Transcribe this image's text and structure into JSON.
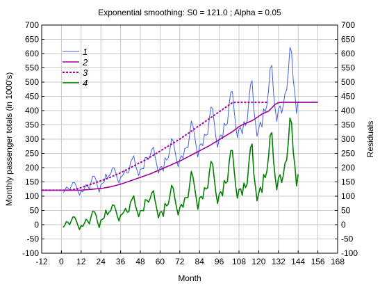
{
  "chart_data": {
    "type": "line",
    "title": "Exponential smoothing: S0 = 121.0 ; Alpha = 0.05",
    "xlabel": "Month",
    "ylabel": "Monthly passenger totals (in 1000's)",
    "y2label": "Residuals",
    "xlim": [
      -12,
      168
    ],
    "ylim": [
      -100,
      700
    ],
    "xticks": [
      -12,
      0,
      12,
      24,
      36,
      48,
      60,
      72,
      84,
      96,
      108,
      120,
      132,
      144,
      156,
      168
    ],
    "yticks": [
      -100,
      -50,
      0,
      50,
      100,
      150,
      200,
      250,
      300,
      350,
      400,
      450,
      500,
      550,
      600,
      650,
      700
    ],
    "grid": true,
    "legend_position": "top-left",
    "series": [
      {
        "name": "1",
        "color": "#4060e0",
        "style": "solid",
        "x_start": 1,
        "values": [
          112,
          118,
          132,
          129,
          121,
          135,
          148,
          148,
          136,
          119,
          104,
          118,
          115,
          126,
          141,
          135,
          125,
          149,
          170,
          170,
          158,
          133,
          114,
          140,
          145,
          150,
          178,
          163,
          172,
          178,
          199,
          199,
          184,
          162,
          146,
          166,
          171,
          180,
          193,
          181,
          183,
          218,
          230,
          242,
          209,
          191,
          172,
          194,
          196,
          196,
          236,
          235,
          229,
          243,
          264,
          272,
          237,
          211,
          180,
          201,
          204,
          188,
          235,
          227,
          234,
          264,
          302,
          293,
          259,
          229,
          203,
          229,
          242,
          233,
          267,
          269,
          270,
          315,
          364,
          347,
          312,
          274,
          237,
          278,
          284,
          277,
          317,
          313,
          318,
          374,
          413,
          405,
          355,
          306,
          271,
          306,
          315,
          301,
          356,
          348,
          355,
          422,
          465,
          467,
          404,
          347,
          305,
          336,
          340,
          318,
          362,
          348,
          363,
          435,
          491,
          505,
          404,
          359,
          310,
          337,
          360,
          342,
          406,
          396,
          420,
          472,
          548,
          559,
          463,
          407,
          362,
          405,
          417,
          391,
          419,
          461,
          472,
          535,
          622,
          606,
          508,
          461,
          390,
          432
        ]
      },
      {
        "name": "2",
        "color": "#a000a0",
        "style": "solid",
        "x_start": -12,
        "x_step": 2,
        "values": [
          121,
          121,
          121,
          121,
          121,
          121,
          121,
          121,
          121,
          121,
          121,
          121,
          121,
          122,
          123,
          124,
          125,
          126,
          127,
          129,
          131,
          133,
          136,
          139,
          142,
          146,
          150,
          154,
          158,
          162,
          166,
          170,
          174,
          178,
          183,
          188,
          193,
          198,
          203,
          208,
          213,
          218,
          223,
          229,
          235,
          241,
          247,
          253,
          259,
          265,
          271,
          277,
          284,
          291,
          298,
          305,
          312,
          319,
          326,
          335,
          344,
          350,
          355,
          360,
          365,
          372,
          380,
          388,
          393,
          398,
          410,
          422,
          428,
          429,
          429,
          429,
          429,
          429,
          429,
          429,
          429,
          429,
          429,
          429,
          429
        ]
      },
      {
        "name": "3",
        "color": "#a000a0",
        "style": "dashed",
        "x_start": -12,
        "x_step": 2,
        "values": [
          121,
          121,
          121,
          121,
          121,
          121,
          121,
          121,
          121,
          122,
          124,
          127,
          130,
          134,
          138,
          142,
          146,
          150,
          154,
          158,
          162,
          167,
          172,
          177,
          182,
          188,
          194,
          200,
          206,
          212,
          218,
          224,
          230,
          237,
          244,
          251,
          258,
          265,
          272,
          279,
          286,
          293,
          300,
          308,
          316,
          324,
          332,
          340,
          348,
          356,
          364,
          372,
          380,
          388,
          396,
          404,
          412,
          420,
          428,
          429,
          429,
          429,
          429,
          429,
          429,
          429,
          429,
          429,
          429,
          429
        ]
      },
      {
        "name": "4",
        "color": "#008000",
        "style": "solid",
        "x_start": 1,
        "values": [
          -9,
          -3,
          11,
          8,
          0,
          14,
          27,
          27,
          15,
          -2,
          -17,
          -3,
          -6,
          5,
          19,
          13,
          3,
          27,
          47,
          46,
          34,
          9,
          -10,
          16,
          19,
          24,
          51,
          35,
          44,
          49,
          69,
          68,
          53,
          30,
          13,
          33,
          37,
          45,
          57,
          44,
          45,
          79,
          90,
          101,
          67,
          48,
          28,
          49,
          50,
          49,
          88,
          86,
          79,
          92,
          112,
          119,
          83,
          56,
          24,
          44,
          46,
          29,
          75,
          66,
          72,
          101,
          138,
          128,
          92,
          61,
          34,
          59,
          71,
          61,
          94,
          95,
          95,
          139,
          187,
          168,
          131,
          92,
          54,
          94,
          99,
          91,
          130,
          125,
          129,
          184,
          222,
          212,
          160,
          110,
          74,
          108,
          116,
          101,
          155,
          146,
          152,
          218,
          260,
          260,
          195,
          136,
          93,
          123,
          126,
          103,
          146,
          130,
          144,
          215,
          270,
          283,
          180,
          134,
          84,
          110,
          132,
          113,
          176,
          165,
          188,
          239,
          314,
          323,
          225,
          168,
          122,
          164,
          175,
          148,
          175,
          216,
          226,
          288,
          374,
          356,
          256,
          208,
          136,
          177
        ]
      }
    ]
  }
}
